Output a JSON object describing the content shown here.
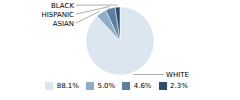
{
  "chart_data": {
    "type": "pie",
    "categories": [
      "WHITE",
      "ASIAN",
      "HISPANIC",
      "BLACK"
    ],
    "values": [
      88.1,
      5.0,
      4.6,
      2.3
    ],
    "value_labels": [
      "88.1%",
      "5.0%",
      "4.6%",
      "2.3%"
    ],
    "colors": [
      "#dce6f1",
      "#8eadc7",
      "#5b7fa0",
      "#2e4e6e"
    ],
    "legend": "bottom"
  }
}
